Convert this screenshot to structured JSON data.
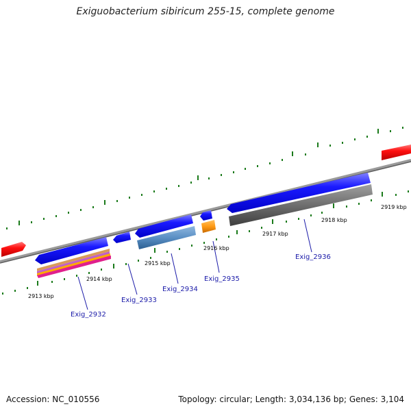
{
  "title": "Exiguobacterium sibiricum 255-15, complete genome",
  "footer": {
    "accession": "Accession: NC_010556",
    "summary": "Topology: circular; Length: 3,034,136 bp; Genes: 3,104"
  },
  "tick_labels": [
    "2913 kbp",
    "2914 kbp",
    "2915 kbp",
    "2916 kbp",
    "2917 kbp",
    "2918 kbp",
    "2919 kbp"
  ],
  "gene_labels": [
    "Exig_2932",
    "Exig_2933",
    "Exig_2934",
    "Exig_2935",
    "Exig_2936"
  ],
  "colors": {
    "backbone": "#888888",
    "cds": "#1010e8",
    "cds_highlight": "#7070ff",
    "context_gene": "#ee1111",
    "tick": "#1a7a1a",
    "label": "#1a1aa8"
  }
}
